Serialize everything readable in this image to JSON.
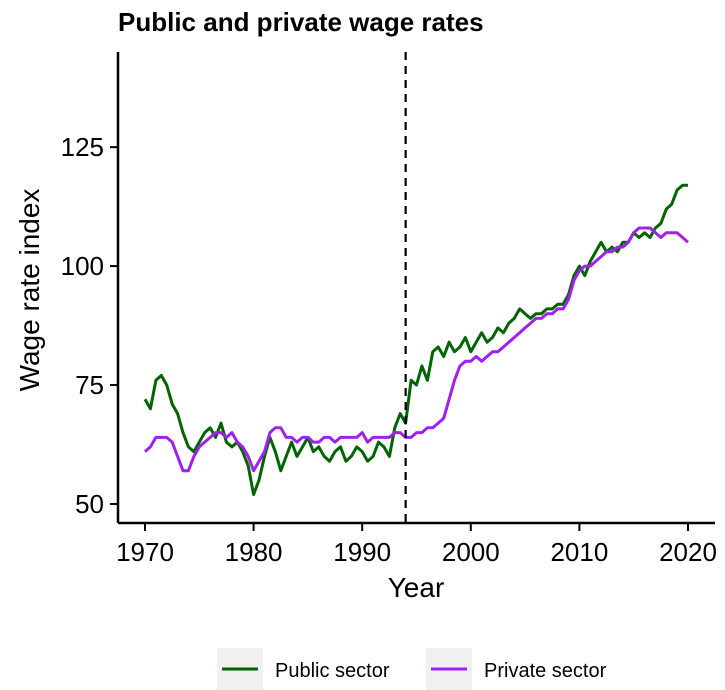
{
  "chart_data": {
    "type": "line",
    "title": "Public and private wage rates",
    "xlabel": "Year",
    "ylabel": "Wage rate index",
    "xlim": [
      1970,
      2020
    ],
    "ylim": [
      46,
      145
    ],
    "xticks": [
      1970,
      1980,
      1990,
      2000,
      2010,
      2020
    ],
    "yticks": [
      50,
      75,
      100,
      125
    ],
    "grid": false,
    "legend_position": "bottom",
    "annotations": [
      {
        "type": "vertical-dashed-line",
        "x": 1994
      }
    ],
    "series": [
      {
        "name": "Public sector",
        "color": "#006400",
        "x": [
          1970,
          1970.5,
          1971,
          1971.5,
          1972,
          1972.5,
          1973,
          1973.5,
          1974,
          1974.5,
          1975,
          1975.5,
          1976,
          1976.5,
          1977,
          1977.5,
          1978,
          1978.5,
          1979,
          1979.5,
          1980,
          1980.5,
          1981,
          1981.5,
          1982,
          1982.5,
          1983,
          1983.5,
          1984,
          1984.5,
          1985,
          1985.5,
          1986,
          1986.5,
          1987,
          1987.5,
          1988,
          1988.5,
          1989,
          1989.5,
          1990,
          1990.5,
          1991,
          1991.5,
          1992,
          1992.5,
          1993,
          1993.5,
          1994,
          1994.5,
          1995,
          1995.5,
          1996,
          1996.5,
          1997,
          1997.5,
          1998,
          1998.5,
          1999,
          1999.5,
          2000,
          2000.5,
          2001,
          2001.5,
          2002,
          2002.5,
          2003,
          2003.5,
          2004,
          2004.5,
          2005,
          2005.5,
          2006,
          2006.5,
          2007,
          2007.5,
          2008,
          2008.5,
          2009,
          2009.5,
          2010,
          2010.5,
          2011,
          2011.5,
          2012,
          2012.5,
          2013,
          2013.5,
          2014,
          2014.5,
          2015,
          2015.5,
          2016,
          2016.5,
          2017,
          2017.5,
          2018,
          2018.5,
          2019,
          2019.5,
          2020
        ],
        "values": [
          72,
          70,
          76,
          77,
          75,
          71,
          69,
          65,
          62,
          61,
          63,
          65,
          66,
          64,
          67,
          63,
          62,
          63,
          61,
          58,
          52,
          55,
          60,
          64,
          61,
          57,
          60,
          63,
          60,
          62,
          64,
          61,
          62,
          60,
          59,
          61,
          62,
          59,
          60,
          62,
          61,
          59,
          60,
          63,
          62,
          60,
          66,
          69,
          67,
          76,
          75,
          79,
          76,
          82,
          83,
          81,
          84,
          82,
          83,
          85,
          82,
          84,
          86,
          84,
          85,
          87,
          86,
          88,
          89,
          91,
          90,
          89,
          90,
          90,
          91,
          91,
          92,
          92,
          94,
          98,
          100,
          98,
          101,
          103,
          105,
          103,
          104,
          103,
          105,
          105,
          107,
          106,
          107,
          106,
          108,
          109,
          112,
          113,
          116,
          117,
          117
        ]
      },
      {
        "name": "Private sector",
        "color": "#A020F0",
        "x": [
          1970,
          1970.5,
          1971,
          1971.5,
          1972,
          1972.5,
          1973,
          1973.5,
          1974,
          1974.5,
          1975,
          1975.5,
          1976,
          1976.5,
          1977,
          1977.5,
          1978,
          1978.5,
          1979,
          1979.5,
          1980,
          1980.5,
          1981,
          1981.5,
          1982,
          1982.5,
          1983,
          1983.5,
          1984,
          1984.5,
          1985,
          1985.5,
          1986,
          1986.5,
          1987,
          1987.5,
          1988,
          1988.5,
          1989,
          1989.5,
          1990,
          1990.5,
          1991,
          1991.5,
          1992,
          1992.5,
          1993,
          1993.5,
          1994,
          1994.5,
          1995,
          1995.5,
          1996,
          1996.5,
          1997,
          1997.5,
          1998,
          1998.5,
          1999,
          1999.5,
          2000,
          2000.5,
          2001,
          2001.5,
          2002,
          2002.5,
          2003,
          2003.5,
          2004,
          2004.5,
          2005,
          2005.5,
          2006,
          2006.5,
          2007,
          2007.5,
          2008,
          2008.5,
          2009,
          2009.5,
          2010,
          2010.5,
          2011,
          2011.5,
          2012,
          2012.5,
          2013,
          2013.5,
          2014,
          2014.5,
          2015,
          2015.5,
          2016,
          2016.5,
          2017,
          2017.5,
          2018,
          2018.5,
          2019,
          2019.5,
          2020
        ],
        "values": [
          61,
          62,
          64,
          64,
          64,
          63,
          60,
          57,
          57,
          60,
          62,
          63,
          64,
          65,
          65,
          64,
          65,
          63,
          62,
          60,
          57,
          59,
          61,
          65,
          66,
          66,
          64,
          64,
          63,
          64,
          64,
          63,
          63,
          64,
          64,
          63,
          64,
          64,
          64,
          64,
          65,
          63,
          64,
          64,
          64,
          64,
          65,
          65,
          64,
          64,
          65,
          65,
          66,
          66,
          67,
          68,
          72,
          76,
          79,
          80,
          80,
          81,
          80,
          81,
          82,
          82,
          83,
          84,
          85,
          86,
          87,
          88,
          89,
          89,
          90,
          90,
          91,
          91,
          93,
          97,
          99,
          100,
          100,
          101,
          102,
          103,
          103,
          104,
          104,
          105,
          107,
          108,
          108,
          108,
          107,
          106,
          107,
          107,
          107,
          106,
          105
        ]
      }
    ]
  }
}
